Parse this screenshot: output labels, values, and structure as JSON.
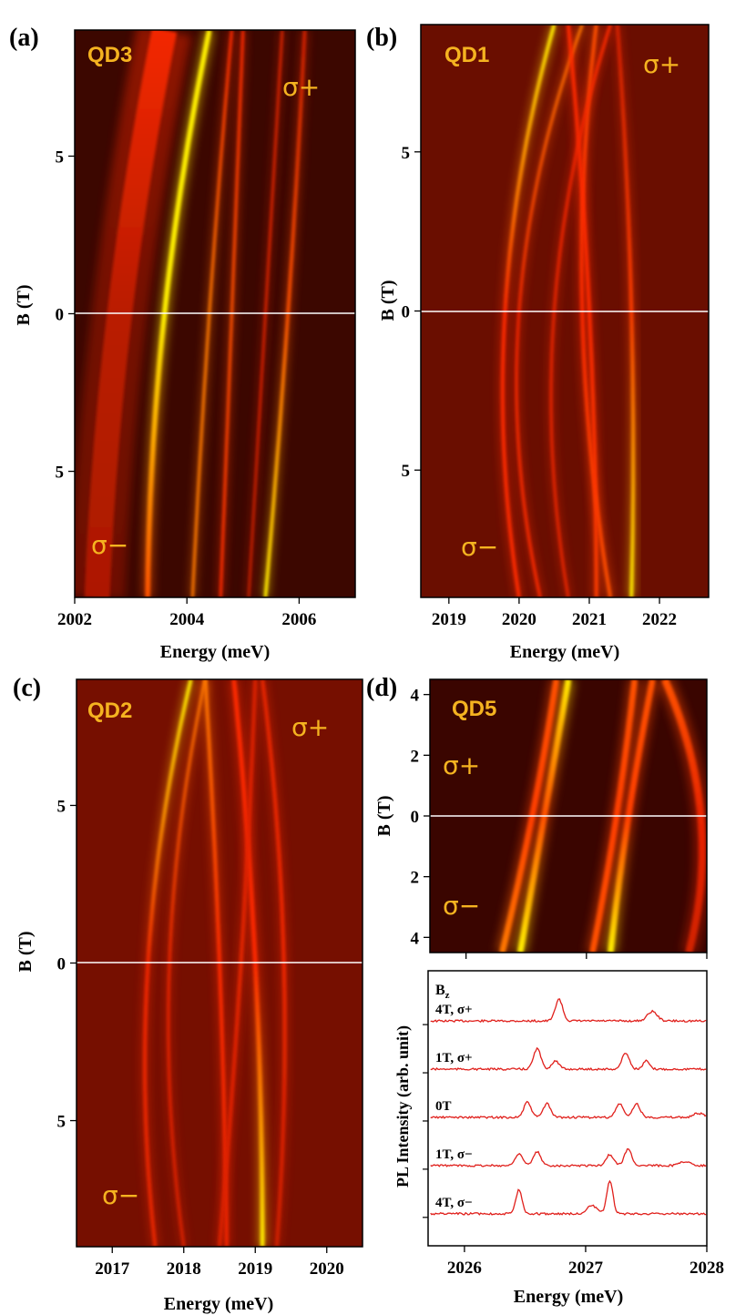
{
  "colors": {
    "map_low": "#2a0300",
    "map_mid": "#8a1200",
    "map_high": "#ff2a00",
    "map_peak": "#fff000",
    "label": "#f5b320",
    "spectrum_line": "#e0201c"
  },
  "chart_data": [
    {
      "type": "heatmap",
      "panel_label": "(a)",
      "dot_label": "QD3",
      "pol_top": "σ+",
      "pol_bottom": "σ−",
      "xlabel": "Energy (meV)",
      "ylabel": "B (T)",
      "xlim": [
        2002.0,
        2007.0
      ],
      "ylim": [
        -9.0,
        9.0
      ],
      "xticks": [
        "2002",
        "2004",
        "2006"
      ],
      "xtick_values": [
        2002,
        2004,
        2006
      ],
      "yticks": [
        "5",
        "0",
        "5"
      ],
      "ytick_values": [
        5,
        0,
        -5
      ],
      "background": "#3c0700",
      "lines": [
        {
          "x": [
            2003.3,
            2003.6,
            2004.4
          ],
          "w": 0.09,
          "i": [
            0.6,
            1.0,
            1.0
          ],
          "peak": true
        },
        {
          "x": [
            2004.1,
            2004.4,
            2004.8
          ],
          "w": 0.05,
          "i": [
            0.7,
            0.7,
            0.5
          ]
        },
        {
          "x": [
            2004.6,
            2004.8,
            2005.0
          ],
          "w": 0.05,
          "i": [
            0.5,
            0.6,
            0.5
          ]
        },
        {
          "x": [
            2005.4,
            2005.8,
            2006.1
          ],
          "w": 0.06,
          "i": [
            1.0,
            0.6,
            0.3
          ],
          "peak": true
        },
        {
          "x": [
            2005.1,
            2005.4,
            2005.7
          ],
          "w": 0.04,
          "i": [
            0.3,
            0.4,
            0.4
          ]
        },
        {
          "x": [
            2002.4,
            2002.8,
            2003.6
          ],
          "w": 0.45,
          "i": [
            0.15,
            0.2,
            0.45
          ]
        }
      ]
    },
    {
      "type": "heatmap",
      "panel_label": "(b)",
      "dot_label": "QD1",
      "pol_top": "σ+",
      "pol_bottom": "σ−",
      "xlabel": "Energy (meV)",
      "ylabel": "B (T)",
      "xlim": [
        2018.6,
        2022.7
      ],
      "ylim": [
        -9.0,
        9.0
      ],
      "xticks": [
        "2019",
        "2020",
        "2021",
        "2022"
      ],
      "xtick_values": [
        2019,
        2020,
        2021,
        2022
      ],
      "yticks": [
        "5",
        "0",
        "5"
      ],
      "ytick_values": [
        5,
        0,
        -5
      ],
      "background": "#6a0e00",
      "lines": [
        {
          "x": [
            2020.0,
            2019.8,
            2020.5
          ],
          "w": 0.05,
          "i": [
            0.5,
            0.5,
            1.0
          ],
          "peak": true
        },
        {
          "x": [
            2020.3,
            2020.0,
            2020.9
          ],
          "w": 0.04,
          "i": [
            0.5,
            0.45,
            0.7
          ]
        },
        {
          "x": [
            2021.3,
            2020.9,
            2021.1
          ],
          "w": 0.05,
          "i": [
            0.6,
            0.5,
            0.6
          ]
        },
        {
          "x": [
            2021.1,
            2021.0,
            2020.7
          ],
          "w": 0.05,
          "i": [
            0.55,
            0.5,
            0.5
          ]
        },
        {
          "x": [
            2021.6,
            2021.6,
            2021.4
          ],
          "w": 0.05,
          "i": [
            1.0,
            0.55,
            0.3
          ],
          "peak": true
        },
        {
          "x": [
            2020.7,
            2020.5,
            2021.3
          ],
          "w": 0.04,
          "i": [
            0.4,
            0.4,
            0.5
          ]
        }
      ]
    },
    {
      "type": "heatmap",
      "panel_label": "(c)",
      "dot_label": "QD2",
      "pol_top": "σ+",
      "pol_bottom": "σ−",
      "xlabel": "Energy (meV)",
      "ylabel": "B (T)",
      "xlim": [
        2016.5,
        2020.5
      ],
      "ylim": [
        -9.0,
        9.0
      ],
      "xticks": [
        "2017",
        "2018",
        "2019",
        "2020"
      ],
      "xtick_values": [
        2017,
        2018,
        2019,
        2020
      ],
      "yticks": [
        "5",
        "0",
        "5"
      ],
      "ytick_values": [
        5,
        0,
        -5
      ],
      "background": "#760f00",
      "lines": [
        {
          "x": [
            2017.6,
            2017.5,
            2018.1
          ],
          "w": 0.05,
          "i": [
            0.4,
            0.45,
            1.0
          ],
          "peak": true
        },
        {
          "x": [
            2018.0,
            2017.8,
            2018.3
          ],
          "w": 0.04,
          "i": [
            0.35,
            0.4,
            0.7
          ]
        },
        {
          "x": [
            2018.6,
            2018.5,
            2018.3
          ],
          "w": 0.05,
          "i": [
            0.45,
            0.5,
            0.7
          ]
        },
        {
          "x": [
            2019.1,
            2019.0,
            2018.7
          ],
          "w": 0.06,
          "i": [
            1.0,
            0.5,
            0.5
          ],
          "peak": true
        },
        {
          "x": [
            2019.3,
            2019.4,
            2019.1
          ],
          "w": 0.05,
          "i": [
            0.3,
            0.45,
            0.4
          ]
        },
        {
          "x": [
            2018.5,
            2018.8,
            2019.0
          ],
          "w": 0.05,
          "i": [
            0.35,
            0.4,
            0.35
          ]
        }
      ]
    },
    {
      "type": "heatmap",
      "panel_label": "(d)",
      "dot_label": "QD5",
      "pol_top": "σ+",
      "pol_bottom": "σ−",
      "ylabel": "B (T)",
      "xlim": [
        2025.7,
        2028.0
      ],
      "ylim": [
        -4.5,
        4.5
      ],
      "xtick_values": [
        2026,
        2027,
        2028
      ],
      "yticks": [
        "4",
        "2",
        "0",
        "2",
        "4"
      ],
      "ytick_values": [
        4,
        2,
        0,
        -2,
        -4
      ],
      "background": "#3a0500",
      "lines": [
        {
          "x": [
            2026.45,
            2026.65,
            2026.85
          ],
          "w": 0.05,
          "i": [
            1.0,
            0.6,
            1.0
          ],
          "peak": true
        },
        {
          "x": [
            2026.3,
            2026.55,
            2026.75
          ],
          "w": 0.05,
          "i": [
            0.7,
            0.55,
            0.6
          ]
        },
        {
          "x": [
            2027.2,
            2027.35,
            2027.55
          ],
          "w": 0.05,
          "i": [
            1.0,
            0.55,
            0.6
          ],
          "peak": true
        },
        {
          "x": [
            2027.05,
            2027.25,
            2027.4
          ],
          "w": 0.05,
          "i": [
            0.6,
            0.55,
            0.6
          ]
        },
        {
          "x": [
            2027.85,
            2027.95,
            2027.65
          ],
          "w": 0.06,
          "i": [
            0.3,
            0.4,
            0.6
          ]
        }
      ]
    },
    {
      "type": "line",
      "panel_label": "(d) spectra",
      "legend_title": "Bz",
      "xlabel": "Energy (meV)",
      "ylabel": "PL Intensity (arb. unit)",
      "xlim": [
        2025.7,
        2028.0
      ],
      "xticks": [
        "2026",
        "2027",
        "2028"
      ],
      "xtick_values": [
        2026,
        2027,
        2028
      ],
      "series": [
        {
          "name": "4T, σ+",
          "baseline": 0.06,
          "peaks": [
            [
              2026.78,
              0.8,
              0.03
            ],
            [
              2027.55,
              0.35,
              0.04
            ]
          ]
        },
        {
          "name": "1T, σ+",
          "baseline": 0.27,
          "peaks": [
            [
              2026.6,
              0.75,
              0.03
            ],
            [
              2026.75,
              0.3,
              0.03
            ],
            [
              2027.33,
              0.6,
              0.03
            ],
            [
              2027.5,
              0.3,
              0.025
            ]
          ]
        },
        {
          "name": "0T",
          "baseline": 0.48,
          "peaks": [
            [
              2026.52,
              0.55,
              0.03
            ],
            [
              2026.68,
              0.5,
              0.03
            ],
            [
              2027.28,
              0.5,
              0.03
            ],
            [
              2027.42,
              0.5,
              0.03
            ],
            [
              2027.93,
              0.15,
              0.04
            ]
          ]
        },
        {
          "name": "1T, σ−",
          "baseline": 0.69,
          "peaks": [
            [
              2026.45,
              0.45,
              0.03
            ],
            [
              2026.6,
              0.5,
              0.03
            ],
            [
              2027.2,
              0.4,
              0.03
            ],
            [
              2027.35,
              0.6,
              0.03
            ],
            [
              2027.82,
              0.15,
              0.04
            ]
          ]
        },
        {
          "name": "4T, σ−",
          "baseline": 0.9,
          "peaks": [
            [
              2026.45,
              0.9,
              0.025
            ],
            [
              2027.05,
              0.3,
              0.04
            ],
            [
              2027.2,
              1.2,
              0.025
            ]
          ]
        }
      ]
    }
  ]
}
